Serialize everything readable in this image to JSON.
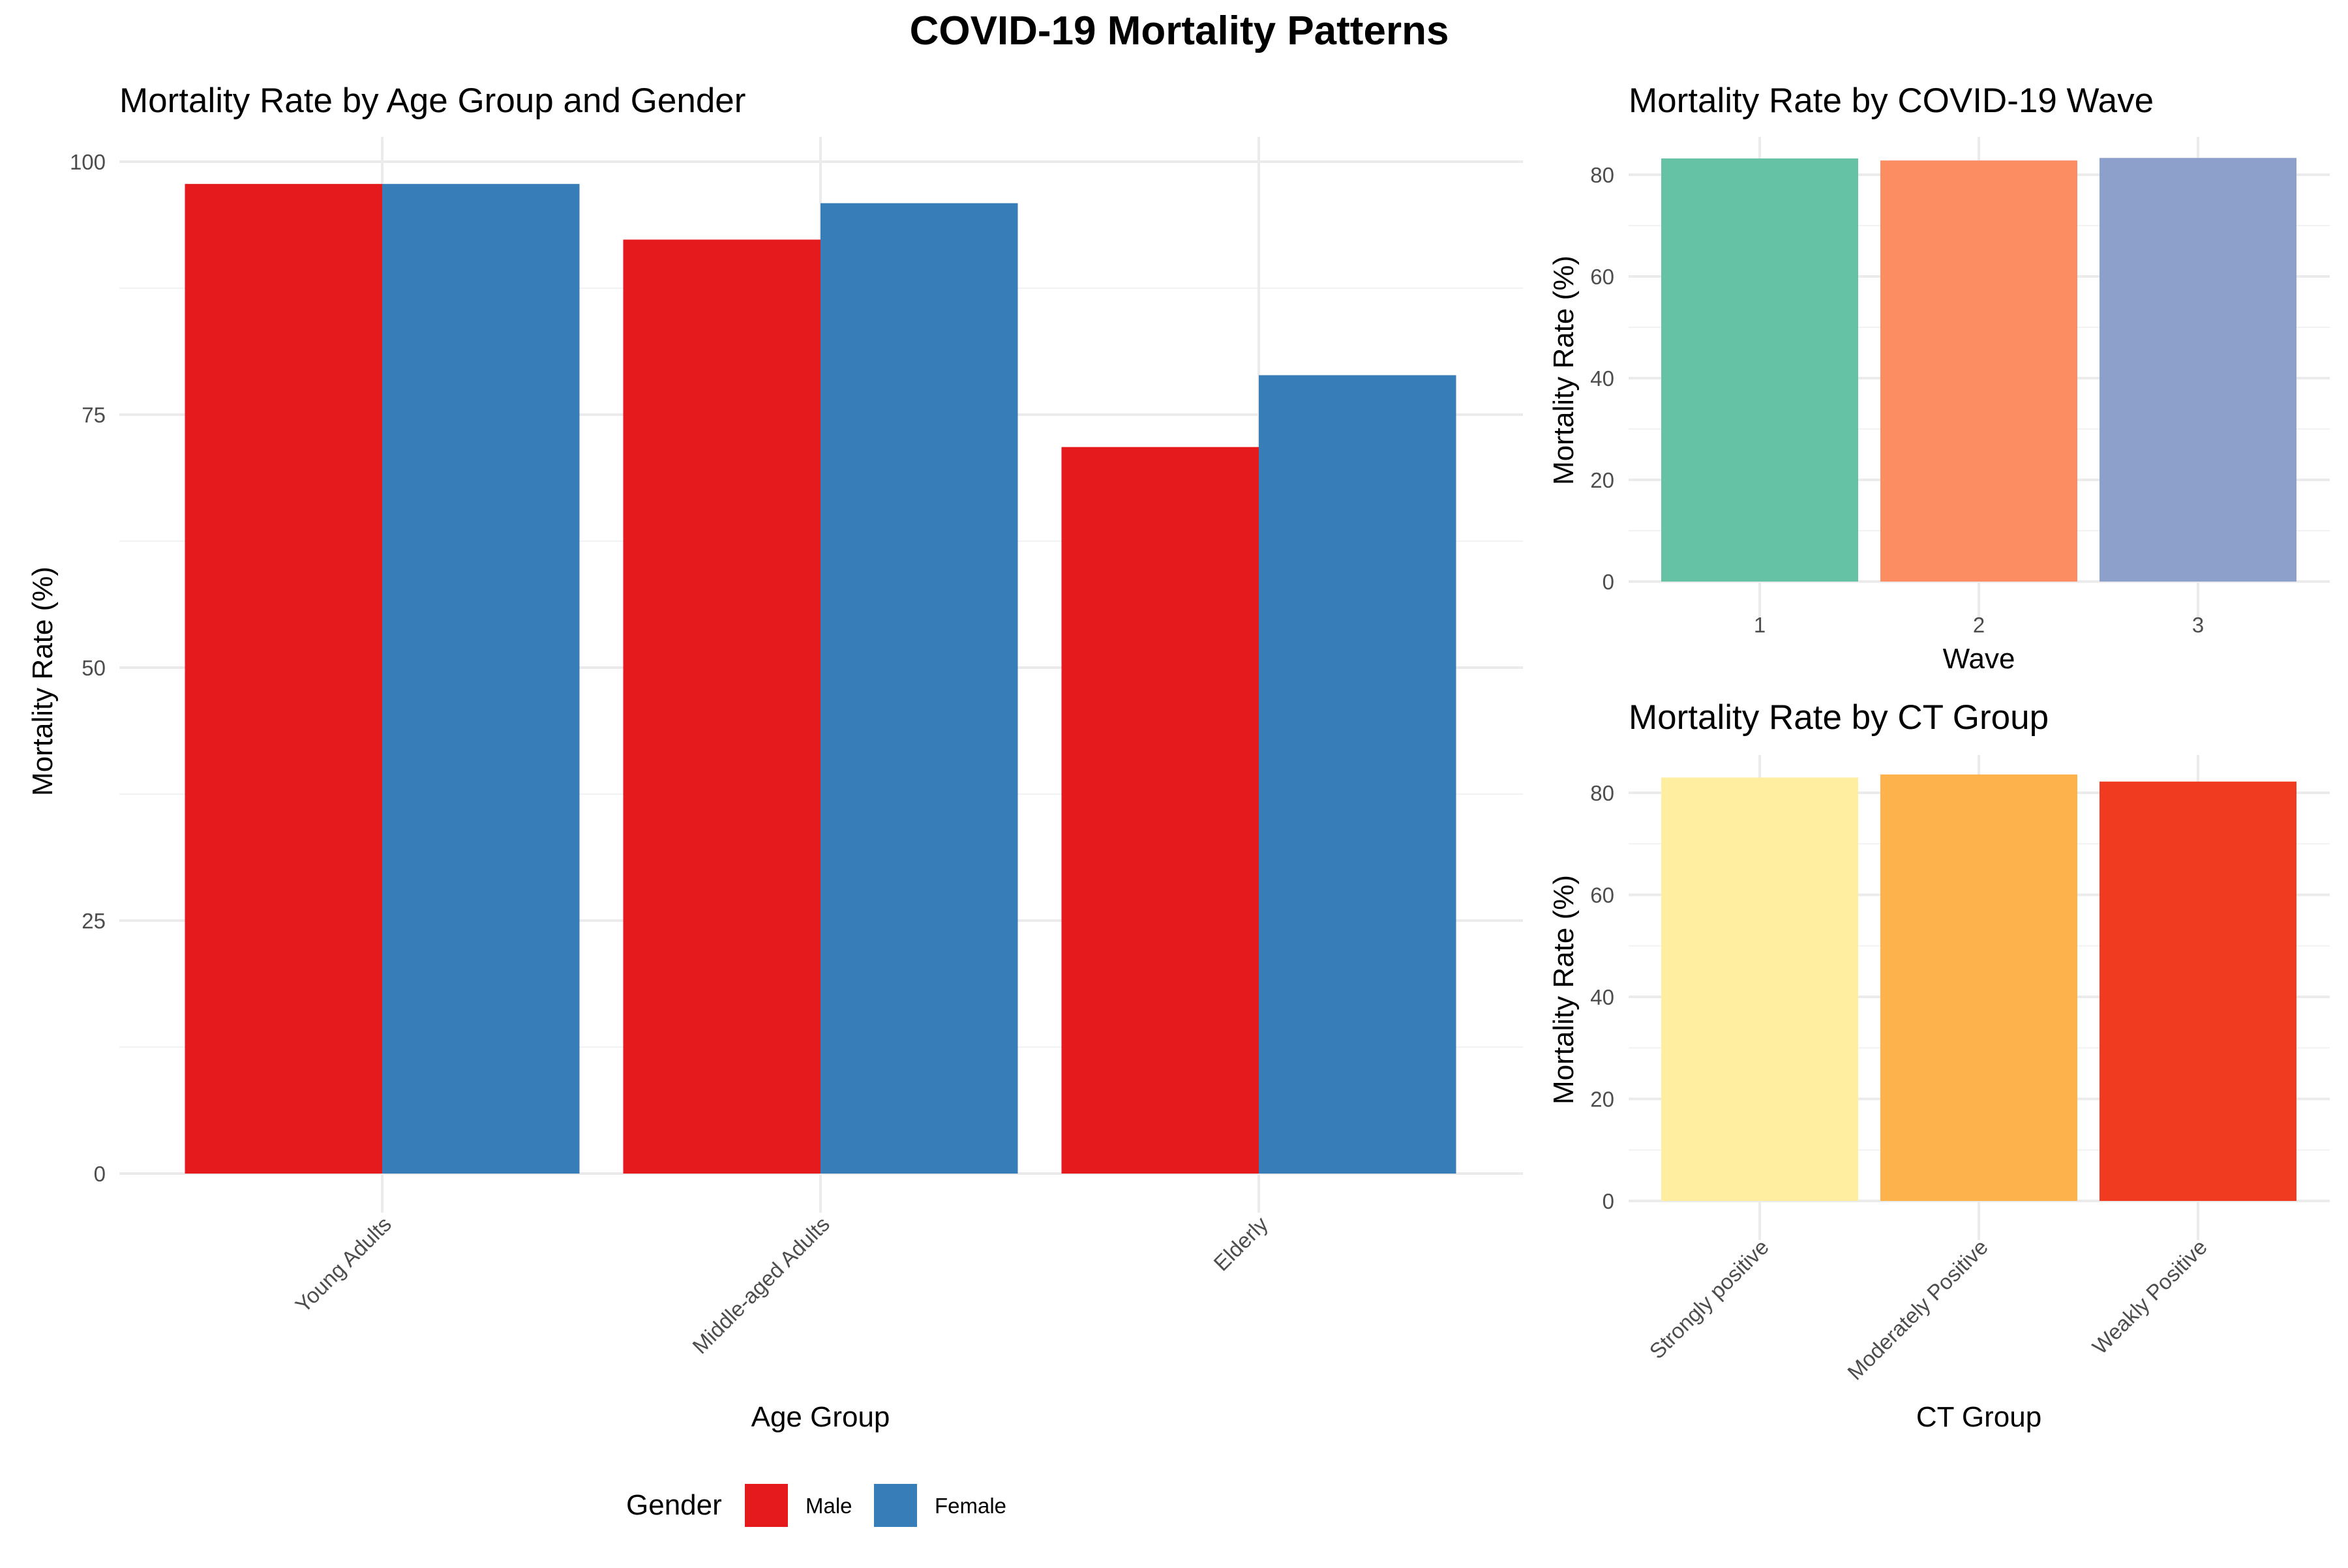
{
  "title": "COVID-19 Mortality Patterns",
  "chart_data": [
    {
      "type": "bar",
      "title": "Mortality Rate by Age Group and Gender",
      "xlabel": "Age Group",
      "ylabel": "Mortality Rate (%)",
      "categories": [
        "Young Adults",
        "Middle-aged Adults",
        "Elderly"
      ],
      "series": [
        {
          "name": "Male",
          "color": "#E41A1C",
          "values": [
            97.8,
            92.3,
            71.8
          ]
        },
        {
          "name": "Female",
          "color": "#377EB8",
          "values": [
            97.8,
            95.9,
            78.9
          ]
        }
      ],
      "ylim": [
        0,
        100
      ],
      "yticks": [
        0,
        25,
        50,
        75,
        100
      ],
      "ytick_labels": [
        "0",
        "25",
        "50",
        "75",
        "100"
      ],
      "grid": true,
      "legend": {
        "title": "Gender",
        "position": "bottom"
      }
    },
    {
      "type": "bar",
      "title": "Mortality Rate by COVID-19 Wave",
      "xlabel": "Wave",
      "ylabel": "Mortality Rate (%)",
      "categories": [
        "1",
        "2",
        "3"
      ],
      "values": [
        83.2,
        82.8,
        83.3
      ],
      "colors": [
        "#66C2A5",
        "#FC8D62",
        "#8DA0CB"
      ],
      "ylim": [
        0,
        83.3
      ],
      "yticks": [
        0,
        20,
        40,
        60,
        80
      ],
      "ytick_labels": [
        "0",
        "20",
        "40",
        "60",
        "80"
      ],
      "grid": true
    },
    {
      "type": "bar",
      "title": "Mortality Rate by CT Group",
      "xlabel": "CT Group",
      "ylabel": "Mortality Rate (%)",
      "categories": [
        "Strongly positive",
        "Moderately Positive",
        "Weakly Positive"
      ],
      "values": [
        83.0,
        83.6,
        82.2
      ],
      "colors": [
        "#FFEDA0",
        "#FEB24C",
        "#F03B20"
      ],
      "ylim": [
        0,
        83.6
      ],
      "yticks": [
        0,
        20,
        40,
        60,
        80
      ],
      "ytick_labels": [
        "0",
        "20",
        "40",
        "60",
        "80"
      ],
      "grid": true
    }
  ]
}
